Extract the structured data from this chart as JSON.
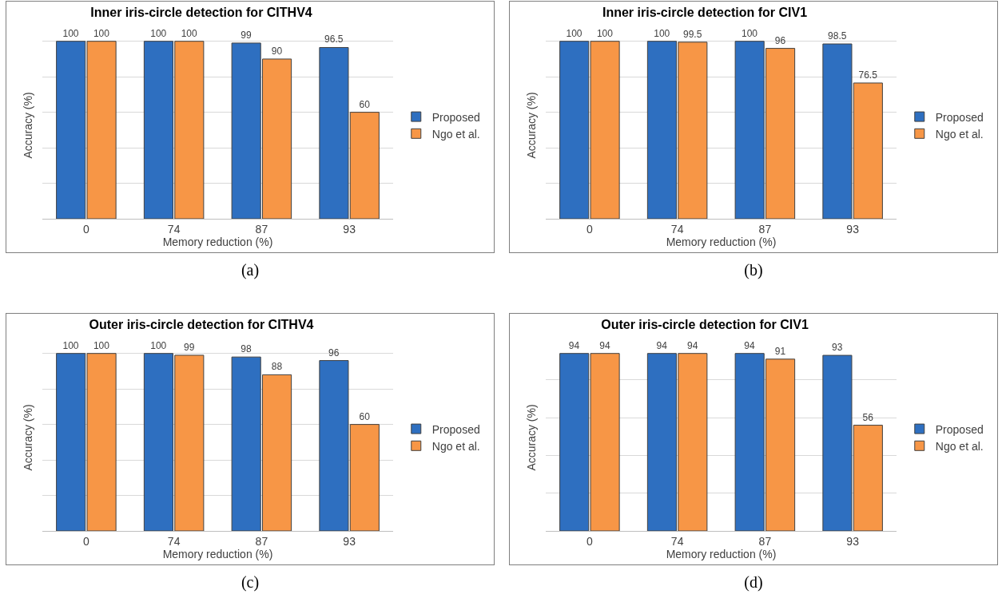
{
  "chart_data": [
    {
      "type": "bar",
      "title": "Inner iris-circle detection for CITHV4",
      "xlabel": "Memory reduction (%)",
      "ylabel": "Accuracy (%)",
      "categories": [
        "0",
        "74",
        "87",
        "93"
      ],
      "series": [
        {
          "name": "Proposed",
          "color": "#2e6fc0",
          "values": [
            100,
            100,
            99,
            96.5
          ]
        },
        {
          "name": "Ngo et al.",
          "color": "#f79646",
          "values": [
            100,
            100,
            90,
            60
          ]
        }
      ],
      "grid": "y",
      "legend": "right",
      "tick_labels": "x",
      "data_labels": true,
      "annotations": [
        "(a)"
      ]
    },
    {
      "type": "bar",
      "title": "Inner iris-circle detection for CIV1",
      "xlabel": "Memory reduction (%)",
      "ylabel": "Accuracy (%)",
      "categories": [
        "0",
        "74",
        "87",
        "93"
      ],
      "series": [
        {
          "name": "Proposed",
          "color": "#2e6fc0",
          "values": [
            100,
            100,
            100,
            98.5
          ]
        },
        {
          "name": "Ngo et al.",
          "color": "#f79646",
          "values": [
            100,
            99.5,
            96,
            76.5
          ]
        }
      ],
      "grid": "y",
      "legend": "right",
      "tick_labels": "x",
      "data_labels": true,
      "annotations": [
        "(b)"
      ]
    },
    {
      "type": "bar",
      "title": "Outer iris-circle detection for CITHV4",
      "xlabel": "Memory reduction (%)",
      "ylabel": "Accuracy (%)",
      "categories": [
        "0",
        "74",
        "87",
        "93"
      ],
      "series": [
        {
          "name": "Proposed",
          "color": "#2e6fc0",
          "values": [
            100,
            100,
            98,
            96
          ]
        },
        {
          "name": "Ngo et al.",
          "color": "#f79646",
          "values": [
            100,
            99,
            88,
            60
          ]
        }
      ],
      "grid": "y",
      "legend": "right",
      "tick_labels": "x",
      "data_labels": true,
      "annotations": [
        "(c)"
      ]
    },
    {
      "type": "bar",
      "title": "Outer iris-circle detection for CIV1",
      "xlabel": "Memory reduction (%)",
      "ylabel": "Accuracy (%)",
      "categories": [
        "0",
        "74",
        "87",
        "93"
      ],
      "series": [
        {
          "name": "Proposed",
          "color": "#2e6fc0",
          "values": [
            94,
            94,
            94,
            93
          ]
        },
        {
          "name": "Ngo et al.",
          "color": "#f79646",
          "values": [
            94,
            94,
            91,
            56
          ]
        }
      ],
      "grid": "y",
      "legend": "right",
      "tick_labels": "x",
      "data_labels": true,
      "annotations": [
        "(d)"
      ]
    }
  ]
}
